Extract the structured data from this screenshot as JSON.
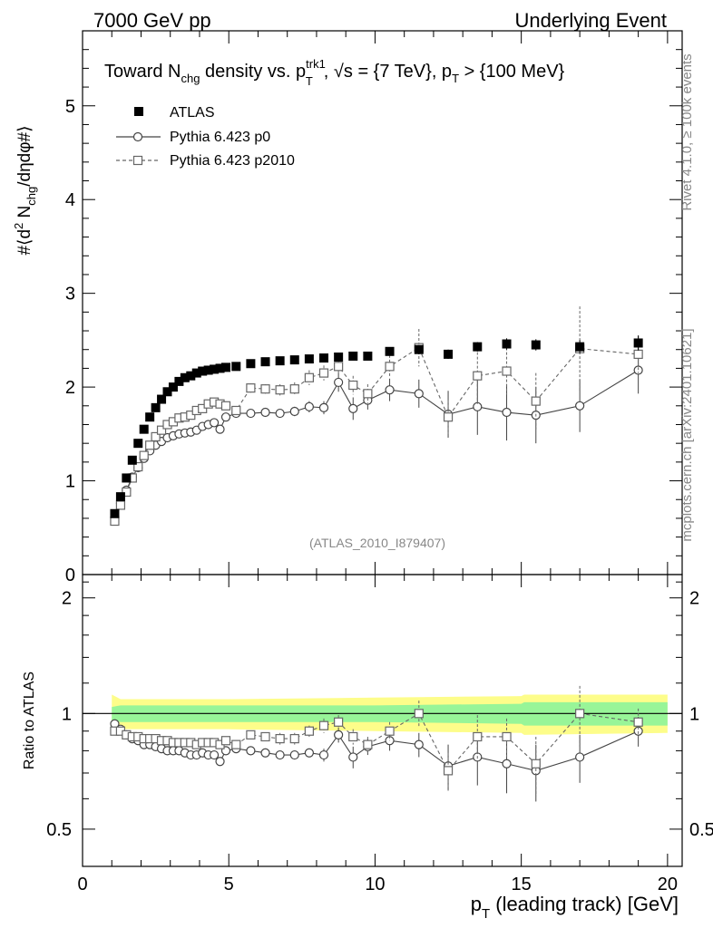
{
  "header": {
    "left": "7000 GeV pp",
    "right": "Underlying Event"
  },
  "side_labels": {
    "rivet": "Rivet 4.1.0, ≥ 100k events",
    "mcplots": "mcplots.cern.ch [arXiv:2401.10621]"
  },
  "watermark": "(ATLAS_2010_I879407)",
  "title": {
    "p1": "Toward N",
    "sub_chg": "chg",
    "p2": " density vs. p",
    "sup_trk1": "trk1",
    "sub_T": "T",
    "p3": ", √s = {7 TeV}, p",
    "sub_T2": "T",
    "p4": " > {100 MeV}"
  },
  "ylabel_top": {
    "a": "#⟨d",
    "sup2": "2",
    "b": " N",
    "sub_chg": "chg",
    "c": "/dηdφ#⟩"
  },
  "ylabel_bottom": "Ratio to ATLAS",
  "xlabel": {
    "p": "p",
    "sub_T": "T",
    "rest": " (leading track) [GeV]"
  },
  "legend": [
    {
      "label": "ATLAS",
      "marker": "filled-square"
    },
    {
      "label": "Pythia 6.423 p0",
      "marker": "open-circle"
    },
    {
      "label": "Pythia 6.423 p2010",
      "marker": "open-square"
    }
  ],
  "chart_data": [
    {
      "type": "scatter",
      "panel": "main",
      "title": "Toward Nchg density vs. pT trk1, sqrt(s) = {7 TeV}, pT > {100 MeV}",
      "xlim": [
        0,
        20.5
      ],
      "ylim": [
        0,
        5.8
      ],
      "yticks": [
        0,
        1,
        2,
        3,
        4,
        5
      ],
      "xticks": [
        0,
        5,
        10,
        15,
        20
      ],
      "series": [
        {
          "name": "ATLAS",
          "color": "#000000",
          "x": [
            1.1,
            1.3,
            1.5,
            1.7,
            1.9,
            2.1,
            2.3,
            2.5,
            2.7,
            2.9,
            3.1,
            3.3,
            3.5,
            3.7,
            3.9,
            4.1,
            4.3,
            4.5,
            4.7,
            4.9,
            5.25,
            5.75,
            6.25,
            6.75,
            7.25,
            7.75,
            8.25,
            8.75,
            9.25,
            9.75,
            10.5,
            11.5,
            12.5,
            13.5,
            14.5,
            15.5,
            17.0,
            19.0
          ],
          "y": [
            0.65,
            0.83,
            1.03,
            1.22,
            1.4,
            1.55,
            1.68,
            1.78,
            1.87,
            1.95,
            2.0,
            2.06,
            2.1,
            2.12,
            2.15,
            2.17,
            2.18,
            2.19,
            2.2,
            2.21,
            2.22,
            2.25,
            2.27,
            2.28,
            2.29,
            2.3,
            2.31,
            2.32,
            2.33,
            2.33,
            2.38,
            2.4,
            2.35,
            2.43,
            2.46,
            2.45,
            2.43,
            2.47
          ],
          "err": [
            0.02,
            0.02,
            0.02,
            0.02,
            0.02,
            0.02,
            0.02,
            0.02,
            0.02,
            0.02,
            0.02,
            0.02,
            0.02,
            0.02,
            0.02,
            0.02,
            0.02,
            0.02,
            0.02,
            0.02,
            0.02,
            0.02,
            0.02,
            0.02,
            0.03,
            0.03,
            0.03,
            0.03,
            0.03,
            0.03,
            0.04,
            0.05,
            0.05,
            0.05,
            0.06,
            0.06,
            0.07,
            0.08
          ]
        },
        {
          "name": "Pythia 6.423 p0",
          "color": "#444444",
          "x": [
            1.1,
            1.3,
            1.5,
            1.7,
            1.9,
            2.1,
            2.3,
            2.5,
            2.7,
            2.9,
            3.1,
            3.3,
            3.5,
            3.7,
            3.9,
            4.1,
            4.3,
            4.5,
            4.7,
            4.9,
            5.25,
            5.75,
            6.25,
            6.75,
            7.25,
            7.75,
            8.25,
            8.75,
            9.25,
            9.75,
            10.5,
            11.5,
            12.5,
            13.5,
            14.5,
            15.5,
            17.0,
            19.0
          ],
          "y": [
            0.61,
            0.76,
            0.9,
            1.04,
            1.14,
            1.24,
            1.32,
            1.38,
            1.42,
            1.46,
            1.48,
            1.5,
            1.51,
            1.52,
            1.54,
            1.58,
            1.6,
            1.62,
            1.55,
            1.68,
            1.72,
            1.72,
            1.73,
            1.72,
            1.74,
            1.79,
            1.78,
            2.05,
            1.77,
            1.86,
            1.97,
            1.93,
            1.71,
            1.79,
            1.73,
            1.7,
            1.8,
            2.18
          ],
          "err": [
            0.02,
            0.02,
            0.02,
            0.02,
            0.02,
            0.02,
            0.02,
            0.02,
            0.02,
            0.02,
            0.02,
            0.02,
            0.02,
            0.02,
            0.02,
            0.02,
            0.02,
            0.02,
            0.03,
            0.03,
            0.03,
            0.03,
            0.04,
            0.04,
            0.05,
            0.06,
            0.07,
            0.1,
            0.12,
            0.1,
            0.12,
            0.15,
            0.25,
            0.3,
            0.3,
            0.3,
            0.28,
            0.25
          ]
        },
        {
          "name": "Pythia 6.423 p2010",
          "color": "#666666",
          "x": [
            1.1,
            1.3,
            1.5,
            1.7,
            1.9,
            2.1,
            2.3,
            2.5,
            2.7,
            2.9,
            3.1,
            3.3,
            3.5,
            3.7,
            3.9,
            4.1,
            4.3,
            4.5,
            4.7,
            4.9,
            5.25,
            5.75,
            6.25,
            6.75,
            7.25,
            7.75,
            8.25,
            8.75,
            9.25,
            9.75,
            10.5,
            11.5,
            12.5,
            13.5,
            14.5,
            15.5,
            17.0,
            19.0
          ],
          "y": [
            0.57,
            0.74,
            0.88,
            1.03,
            1.15,
            1.27,
            1.38,
            1.47,
            1.54,
            1.6,
            1.63,
            1.67,
            1.68,
            1.7,
            1.75,
            1.77,
            1.82,
            1.84,
            1.82,
            1.8,
            1.75,
            1.99,
            1.98,
            1.97,
            1.98,
            2.1,
            2.15,
            2.22,
            2.02,
            1.93,
            2.22,
            2.42,
            1.68,
            2.12,
            2.17,
            1.85,
            2.41,
            2.35
          ],
          "err": [
            0.02,
            0.02,
            0.02,
            0.02,
            0.02,
            0.02,
            0.02,
            0.02,
            0.02,
            0.02,
            0.02,
            0.02,
            0.02,
            0.02,
            0.03,
            0.03,
            0.03,
            0.03,
            0.04,
            0.04,
            0.04,
            0.05,
            0.05,
            0.06,
            0.07,
            0.08,
            0.08,
            0.1,
            0.1,
            0.1,
            0.12,
            0.2,
            0.18,
            0.3,
            0.25,
            0.3,
            0.45,
            0.2
          ]
        }
      ]
    },
    {
      "type": "scatter",
      "panel": "ratio",
      "ylabel": "Ratio to ATLAS",
      "xlabel": "pT (leading track) [GeV]",
      "xlim": [
        0,
        20.5
      ],
      "ylim": [
        0.4,
        2.3
      ],
      "log_y": true,
      "yticks": [
        0.5,
        1,
        2
      ],
      "xticks": [
        0,
        5,
        10,
        15,
        20
      ],
      "band": {
        "x": [
          1.0,
          1.3,
          1.5,
          5.0,
          10.0,
          15.0,
          15.1,
          20.0
        ],
        "green_lo": [
          0.96,
          0.95,
          0.95,
          0.95,
          0.95,
          0.94,
          0.93,
          0.93
        ],
        "green_hi": [
          1.04,
          1.05,
          1.05,
          1.05,
          1.05,
          1.06,
          1.07,
          1.07
        ],
        "yellow_lo": [
          0.88,
          0.91,
          0.91,
          0.91,
          0.9,
          0.89,
          0.88,
          0.89
        ],
        "yellow_hi": [
          1.12,
          1.09,
          1.09,
          1.09,
          1.1,
          1.11,
          1.12,
          1.12
        ]
      },
      "series": [
        {
          "name": "Pythia 6.423 p0",
          "color": "#444444",
          "x": [
            1.1,
            1.3,
            1.5,
            1.7,
            1.9,
            2.1,
            2.3,
            2.5,
            2.7,
            2.9,
            3.1,
            3.3,
            3.5,
            3.7,
            3.9,
            4.1,
            4.3,
            4.5,
            4.7,
            4.9,
            5.25,
            5.75,
            6.25,
            6.75,
            7.25,
            7.75,
            8.25,
            8.75,
            9.25,
            9.75,
            10.5,
            11.5,
            12.5,
            13.5,
            14.5,
            15.5,
            17.0,
            19.0
          ],
          "y": [
            0.94,
            0.91,
            0.88,
            0.86,
            0.85,
            0.83,
            0.83,
            0.82,
            0.81,
            0.8,
            0.8,
            0.8,
            0.79,
            0.78,
            0.78,
            0.79,
            0.78,
            0.78,
            0.75,
            0.8,
            0.81,
            0.8,
            0.79,
            0.78,
            0.78,
            0.79,
            0.78,
            0.88,
            0.77,
            0.82,
            0.85,
            0.83,
            0.73,
            0.77,
            0.74,
            0.71,
            0.77,
            0.9
          ],
          "err": [
            0.01,
            0.01,
            0.01,
            0.01,
            0.01,
            0.01,
            0.01,
            0.01,
            0.01,
            0.01,
            0.01,
            0.01,
            0.01,
            0.01,
            0.01,
            0.01,
            0.01,
            0.01,
            0.01,
            0.01,
            0.01,
            0.01,
            0.01,
            0.02,
            0.02,
            0.02,
            0.03,
            0.04,
            0.05,
            0.04,
            0.05,
            0.06,
            0.1,
            0.12,
            0.12,
            0.12,
            0.11,
            0.08
          ]
        },
        {
          "name": "Pythia 6.423 p2010",
          "color": "#666666",
          "x": [
            1.1,
            1.3,
            1.5,
            1.7,
            1.9,
            2.1,
            2.3,
            2.5,
            2.7,
            2.9,
            3.1,
            3.3,
            3.5,
            3.7,
            3.9,
            4.1,
            4.3,
            4.5,
            4.7,
            4.9,
            5.25,
            5.75,
            6.25,
            6.75,
            7.25,
            7.75,
            8.25,
            8.75,
            9.25,
            9.75,
            10.5,
            11.5,
            12.5,
            13.5,
            14.5,
            15.5,
            17.0,
            19.0
          ],
          "y": [
            0.9,
            0.9,
            0.88,
            0.87,
            0.87,
            0.86,
            0.86,
            0.86,
            0.85,
            0.85,
            0.84,
            0.84,
            0.84,
            0.84,
            0.83,
            0.84,
            0.84,
            0.84,
            0.83,
            0.85,
            0.83,
            0.88,
            0.87,
            0.86,
            0.86,
            0.9,
            0.93,
            0.95,
            0.87,
            0.83,
            0.9,
            1.0,
            0.71,
            0.87,
            0.87,
            0.74,
            1.0,
            0.95
          ],
          "err": [
            0.01,
            0.01,
            0.01,
            0.01,
            0.01,
            0.01,
            0.01,
            0.01,
            0.01,
            0.01,
            0.01,
            0.01,
            0.01,
            0.01,
            0.01,
            0.01,
            0.01,
            0.01,
            0.02,
            0.02,
            0.02,
            0.02,
            0.02,
            0.03,
            0.03,
            0.03,
            0.04,
            0.04,
            0.04,
            0.04,
            0.05,
            0.08,
            0.08,
            0.12,
            0.1,
            0.13,
            0.18,
            0.08
          ]
        }
      ]
    }
  ]
}
